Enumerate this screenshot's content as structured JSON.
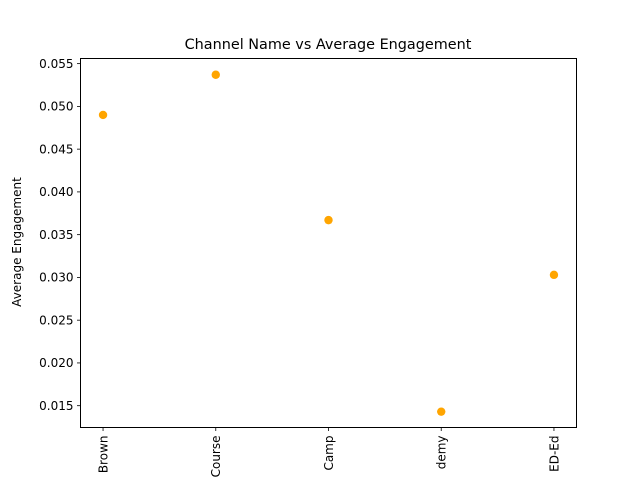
{
  "chart_data": {
    "type": "scatter",
    "title": "Channel Name vs Average Engagement",
    "xlabel": "",
    "ylabel": "Average Engagement",
    "categories": [
      "Brown",
      "Course",
      "Camp",
      "demy",
      "ED-Ed"
    ],
    "values": [
      0.049,
      0.0537,
      0.0367,
      0.0143,
      0.0303
    ],
    "yticks": [
      0.015,
      0.02,
      0.025,
      0.03,
      0.035,
      0.04,
      0.045,
      0.05,
      0.055
    ],
    "ytick_labels": [
      "0.015",
      "0.020",
      "0.025",
      "0.030",
      "0.035",
      "0.040",
      "0.045",
      "0.050",
      "0.055"
    ],
    "ylim": [
      0.01245,
      0.0556
    ],
    "grid": false,
    "legend": "none",
    "colors": {
      "marker": "#ffa500",
      "axis": "#000000",
      "background": "#ffffff"
    }
  }
}
